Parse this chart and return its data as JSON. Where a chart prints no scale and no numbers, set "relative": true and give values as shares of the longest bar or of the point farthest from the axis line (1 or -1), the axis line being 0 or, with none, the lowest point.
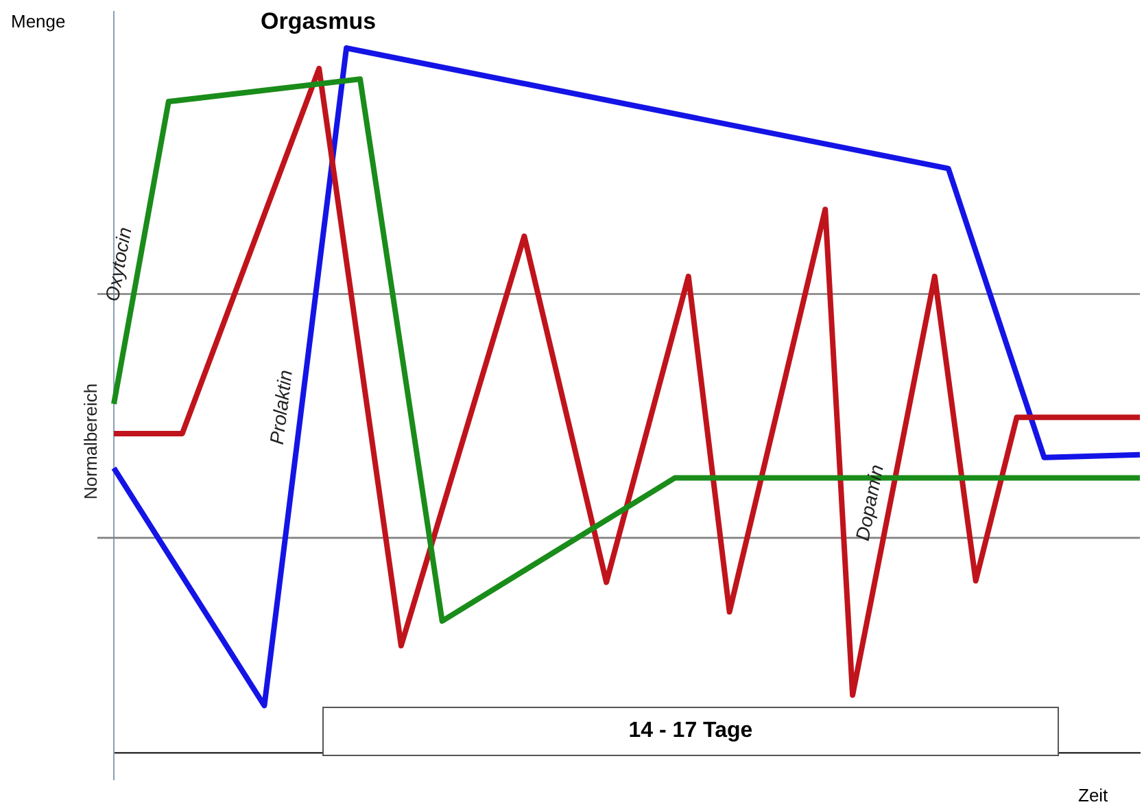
{
  "chart_data": {
    "type": "line",
    "title": "Orgasmus",
    "xlabel": "Zeit",
    "ylabel": "Menge",
    "relative": true,
    "grid": false,
    "legend": false,
    "marker": "none",
    "line_style": "solid",
    "categories": [
      null,
      null,
      null,
      null,
      null,
      null,
      null,
      null,
      null,
      null,
      null,
      null,
      null,
      null,
      null,
      null,
      null,
      null,
      null,
      null,
      null,
      null,
      null,
      null,
      null,
      null,
      null,
      null,
      null,
      null,
      null,
      null,
      null,
      null,
      null,
      null,
      null,
      null,
      null,
      null,
      null,
      null,
      null,
      null,
      null,
      null,
      null,
      null,
      null,
      null,
      null,
      null,
      null,
      null,
      null,
      null,
      null,
      null,
      null,
      null,
      null,
      null,
      null,
      null,
      null,
      null,
      null,
      null,
      null,
      null,
      null,
      null,
      null,
      null,
      null,
      null
    ],
    "series": [
      {
        "name": "Oxytocin",
        "color": "#1a8c1a",
        "values": [
          0.495,
          null,
          null,
          null,
          0.924,
          null,
          null,
          null,
          null,
          null,
          null,
          null,
          null,
          null,
          null,
          null,
          null,
          null,
          0.956,
          null,
          null,
          null,
          null,
          null,
          0.187,
          null,
          null,
          null,
          null,
          null,
          null,
          null,
          null,
          null,
          null,
          null,
          null,
          null,
          null,
          null,
          null,
          0.39,
          null,
          null,
          null,
          null,
          null,
          null,
          null,
          null,
          null,
          null,
          null,
          null,
          null,
          null,
          null,
          null,
          null,
          null,
          null,
          null,
          null,
          null,
          null,
          null,
          null,
          null,
          null,
          null,
          null,
          null,
          null,
          null,
          null,
          0.39
        ]
      },
      {
        "name": "Dopamin",
        "color": "#c0141c",
        "values": [
          0.453,
          null,
          null,
          null,
          null,
          0.453,
          null,
          null,
          null,
          null,
          null,
          null,
          null,
          null,
          null,
          0.971,
          null,
          null,
          null,
          null,
          null,
          0.152,
          null,
          null,
          null,
          null,
          null,
          null,
          null,
          null,
          0.733,
          null,
          null,
          null,
          null,
          null,
          0.242,
          null,
          null,
          null,
          null,
          null,
          0.676,
          null,
          null,
          0.2,
          null,
          null,
          null,
          null,
          null,
          null,
          0.771,
          null,
          0.082,
          null,
          null,
          null,
          null,
          null,
          0.676,
          null,
          null,
          0.244,
          null,
          null,
          0.476,
          null,
          null,
          null,
          null,
          null,
          null,
          null,
          null,
          0.476
        ]
      },
      {
        "name": "Prolaktin",
        "color": "#1414e6",
        "values": [
          0.404,
          null,
          null,
          null,
          null,
          null,
          null,
          null,
          null,
          null,
          null,
          0.067,
          null,
          null,
          null,
          null,
          null,
          1,
          null,
          null,
          null,
          null,
          null,
          null,
          null,
          null,
          null,
          null,
          null,
          null,
          null,
          null,
          null,
          null,
          null,
          null,
          null,
          null,
          null,
          null,
          null,
          null,
          null,
          null,
          null,
          null,
          null,
          null,
          null,
          null,
          null,
          null,
          null,
          null,
          null,
          null,
          null,
          null,
          null,
          null,
          null,
          0.829,
          null,
          null,
          null,
          null,
          null,
          null,
          0.419,
          null,
          null,
          null,
          null,
          null,
          null,
          0.423
        ]
      }
    ],
    "ref_lines": [
      {
        "axis": "y",
        "value": 0.305,
        "label": "Normalbereich",
        "color": "#808080"
      },
      {
        "axis": "y",
        "value": 0.651,
        "color": "#808080"
      }
    ],
    "annotations": [
      "14 - 17 Tage"
    ]
  }
}
